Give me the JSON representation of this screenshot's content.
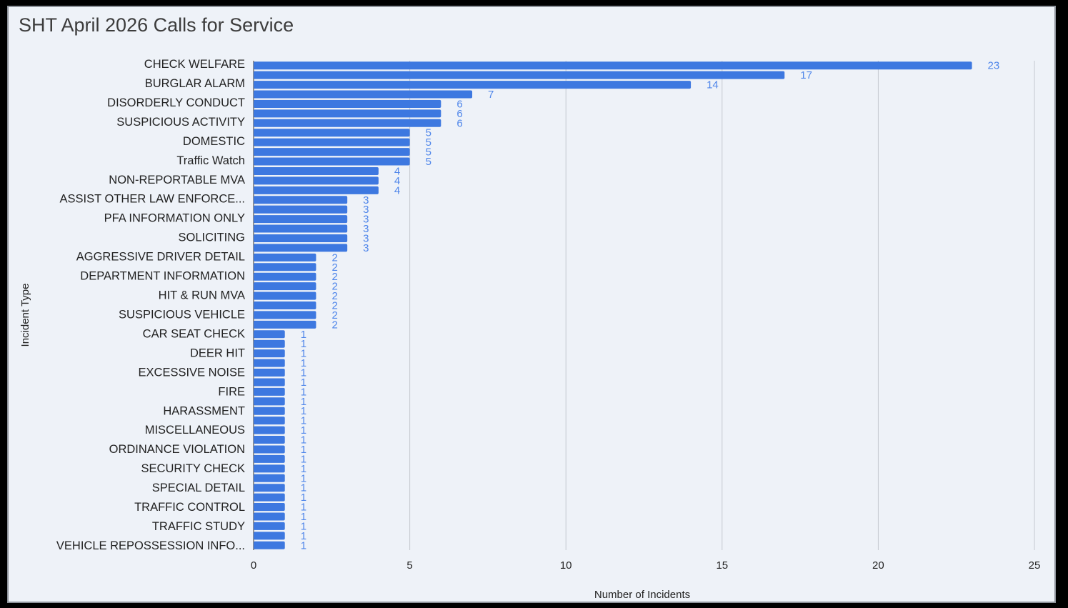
{
  "title": "SHT April 2026 Calls for Service",
  "chart_data": {
    "type": "bar",
    "orientation": "horizontal",
    "title": "SHT April 2026 Calls for Service",
    "xlabel": "Number of Incidents",
    "ylabel": "Incident Type",
    "xlim": [
      0,
      25
    ],
    "xticks": [
      0,
      5,
      10,
      15,
      20,
      25
    ],
    "grid": true,
    "legend": "none",
    "bar_color": "#3d78e0",
    "label_color": "#4f86ea",
    "visible_category_labels": [
      "CHECK WELFARE",
      "BURGLAR ALARM",
      "DISORDERLY CONDUCT",
      "SUSPICIOUS ACTIVITY",
      "DOMESTIC",
      "Traffic Watch",
      "NON-REPORTABLE MVA",
      "ASSIST OTHER LAW ENFORCE...",
      "PFA INFORMATION ONLY",
      "SOLICITING",
      "AGGRESSIVE DRIVER DETAIL",
      "DEPARTMENT INFORMATION",
      "HIT & RUN MVA",
      "SUSPICIOUS VEHICLE",
      "CAR SEAT CHECK",
      "DEER HIT",
      "EXCESSIVE NOISE",
      "FIRE",
      "HARASSMENT",
      "MISCELLANEOUS",
      "ORDINANCE VIOLATION",
      "SECURITY CHECK",
      "SPECIAL DETAIL",
      "TRAFFIC CONTROL",
      "TRAFFIC STUDY",
      "VEHICLE REPOSSESSION INFO..."
    ],
    "values": [
      23,
      17,
      14,
      7,
      6,
      6,
      6,
      5,
      5,
      5,
      5,
      4,
      4,
      4,
      3,
      3,
      3,
      3,
      3,
      3,
      2,
      2,
      2,
      2,
      2,
      2,
      2,
      2,
      1,
      1,
      1,
      1,
      1,
      1,
      1,
      1,
      1,
      1,
      1,
      1,
      1,
      1,
      1,
      1,
      1,
      1,
      1,
      1,
      1,
      1,
      1
    ]
  }
}
